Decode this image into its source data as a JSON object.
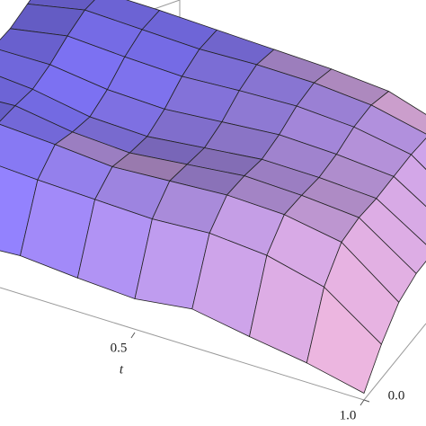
{
  "chart_data": {
    "type": "surface",
    "xlabel": "t",
    "xlim": [
      0,
      1
    ],
    "ylim": [
      0,
      1
    ],
    "zlim": [
      0,
      1
    ],
    "xticks": [
      0.5,
      {
        "value": 1,
        "label": "1.0"
      }
    ],
    "yticks": [
      {
        "value": 0,
        "label": "0.0"
      }
    ],
    "z": [
      [
        0.35,
        0.7,
        0.78,
        0.8,
        0.82,
        0.8,
        0.78,
        0.8,
        0.82
      ],
      [
        0.3,
        0.75,
        0.85,
        0.82,
        0.78,
        0.8,
        0.85,
        0.88,
        0.85
      ],
      [
        0.32,
        0.72,
        0.82,
        0.75,
        0.7,
        0.74,
        0.82,
        0.86,
        0.84
      ],
      [
        0.28,
        0.7,
        0.78,
        0.72,
        0.68,
        0.72,
        0.8,
        0.84,
        0.82
      ],
      [
        0.25,
        0.68,
        0.8,
        0.76,
        0.72,
        0.75,
        0.82,
        0.85,
        0.8
      ],
      [
        0.3,
        0.7,
        0.82,
        0.8,
        0.76,
        0.78,
        0.83,
        0.84,
        0.78
      ],
      [
        0.22,
        0.66,
        0.8,
        0.78,
        0.75,
        0.76,
        0.8,
        0.8,
        0.74
      ],
      [
        0.15,
        0.55,
        0.72,
        0.74,
        0.72,
        0.72,
        0.72,
        0.7,
        0.6
      ],
      [
        0.05,
        0.25,
        0.4,
        0.45,
        0.45,
        0.45,
        0.42,
        0.35,
        0.3
      ]
    ]
  }
}
